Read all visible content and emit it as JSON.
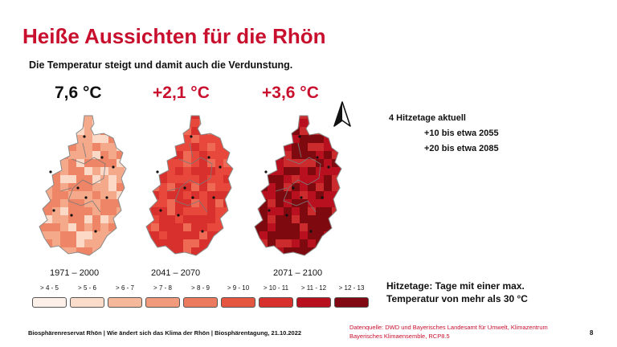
{
  "title": "Heiße Aussichten für die Rhön",
  "subtitle": "Die Temperatur steigt und damit auch die Verdunstung.",
  "maps": [
    {
      "temperature": "7,6 °C",
      "period": "1971 – 2000",
      "base_color": "#f4a98a",
      "light_color": "#fbd9c6",
      "dark_color": "#ee8566"
    },
    {
      "temperature": "+2,1 °C",
      "period": "2041 – 2070",
      "base_color": "#e8473b",
      "light_color": "#ee6a55",
      "dark_color": "#d8312d"
    },
    {
      "temperature": "+3,6 °C",
      "period": "2071 – 2100",
      "base_color": "#b8101f",
      "light_color": "#cc2b2e",
      "dark_color": "#7e0a10"
    }
  ],
  "legend": [
    {
      "label": "> 4 - 5",
      "color": "#fdf0e8"
    },
    {
      "label": "> 5 - 6",
      "color": "#fbdcca"
    },
    {
      "label": "> 6 - 7",
      "color": "#f6b89b"
    },
    {
      "label": "> 7 - 8",
      "color": "#f19a7c"
    },
    {
      "label": "> 8 - 9",
      "color": "#ec7a5e"
    },
    {
      "label": "> 9 - 10",
      "color": "#e55640"
    },
    {
      "label": "> 10 - 11",
      "color": "#d8312d"
    },
    {
      "label": "> 11 - 12",
      "color": "#b8101f"
    },
    {
      "label": "> 12 - 13",
      "color": "#800913"
    }
  ],
  "hitzetage": {
    "current": "4 Hitzetage aktuell",
    "projection_2055": "+10 bis etwa 2055",
    "projection_2085": "+20 bis etwa 2085"
  },
  "definition": {
    "line1": "Hitzetage: Tage mit einer max.",
    "line2": "Temperatur von mehr als 30 °C"
  },
  "footer": "Biosphärenreservat Rhön  |  Wie ändert sich das Klima der Rhön  |  Biosphärentagung, 21.10.2022",
  "source": {
    "line1": "Datenquelle: DWD und Bayerisches Landesamt für Umwelt, Klimazentrum",
    "line2": "Bayerisches Klimaensemble, RCP8.5"
  },
  "page_number": "8"
}
